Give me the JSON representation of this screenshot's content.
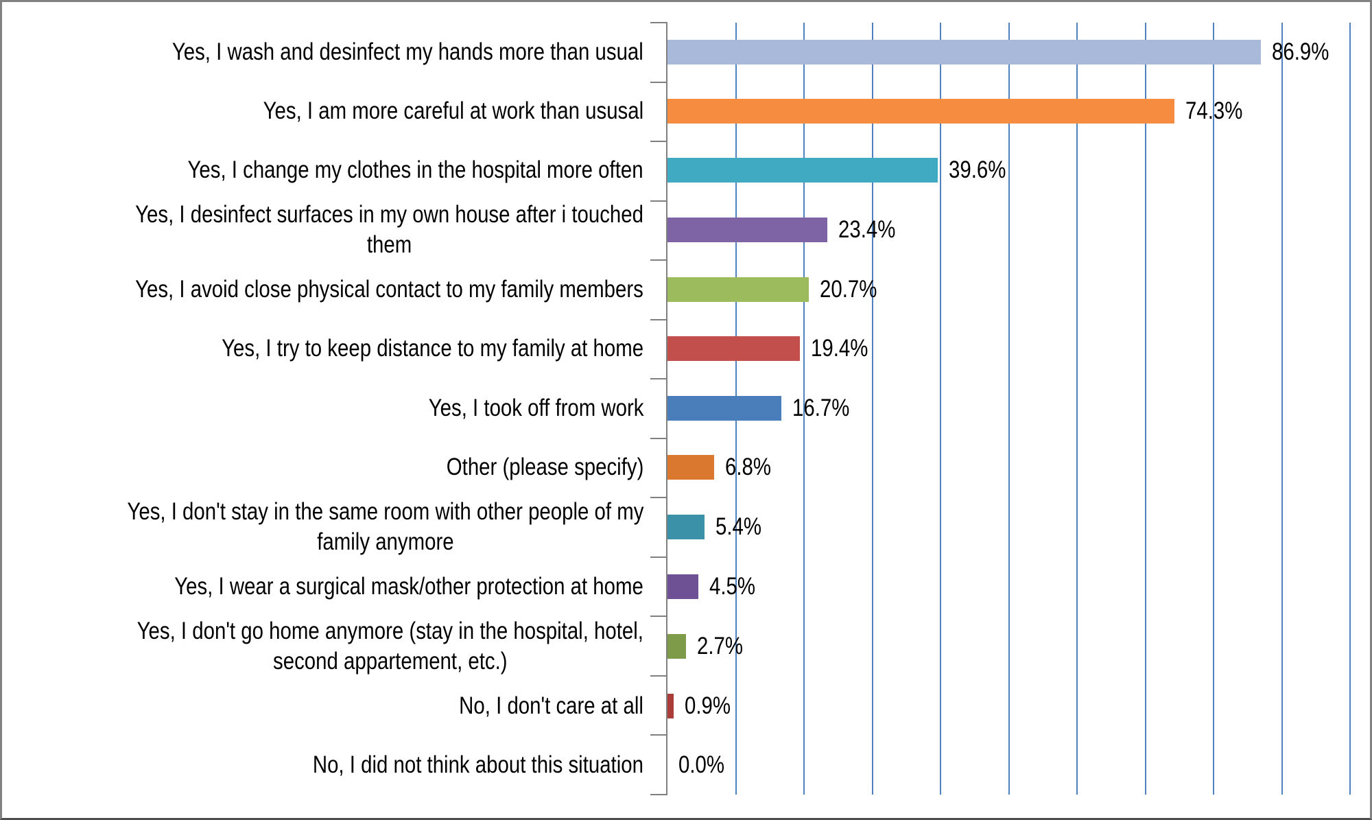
{
  "chart_data": {
    "type": "bar",
    "orientation": "horizontal",
    "title": "",
    "xlabel": "",
    "ylabel": "",
    "legend": "none",
    "grid": "vertical",
    "axis": {
      "min": 0,
      "max": 100,
      "unit": "%",
      "color": "#7F7F7F"
    },
    "gridlines": {
      "step": 10,
      "color": "#4F81BD"
    },
    "categories": [
      "Yes, I wash and desinfect my hands more than usual",
      "Yes, I am more careful at work than ususal",
      "Yes, I change my clothes in the hospital more often",
      "Yes, I desinfect surfaces in my own house after i touched\nthem",
      "Yes, I avoid close physical contact to my family members",
      "Yes, I try to keep distance to my family at home",
      "Yes, I took off from work",
      "Other (please specify)",
      "Yes, I don't stay in the same room with other people of my\nfamily anymore",
      "Yes, I wear a surgical mask/other protection at home",
      "Yes, I don't go home anymore (stay in the hospital, hotel,\nsecond appartement, etc.)",
      "No, I don't care at all",
      "No, I did not think about this situation"
    ],
    "values": [
      86.9,
      74.3,
      39.6,
      23.4,
      20.7,
      19.4,
      16.7,
      6.8,
      5.4,
      4.5,
      2.7,
      0.9,
      0.0
    ],
    "value_labels": [
      "86.9%",
      "74.3%",
      "39.6%",
      "23.4%",
      "20.7%",
      "19.4%",
      "16.7%",
      "6.8%",
      "5.4%",
      "4.5%",
      "2.7%",
      "0.9%",
      "0.0%"
    ],
    "bar_colors": [
      "#A9B9D9",
      "#F68C40",
      "#3FAAC1",
      "#7E63A5",
      "#9CBB5C",
      "#C24F4C",
      "#4A7EBB",
      "#D9782E",
      "#3B92A8",
      "#6D5194",
      "#7D9B48",
      "#AA3C39",
      "transparent"
    ]
  }
}
